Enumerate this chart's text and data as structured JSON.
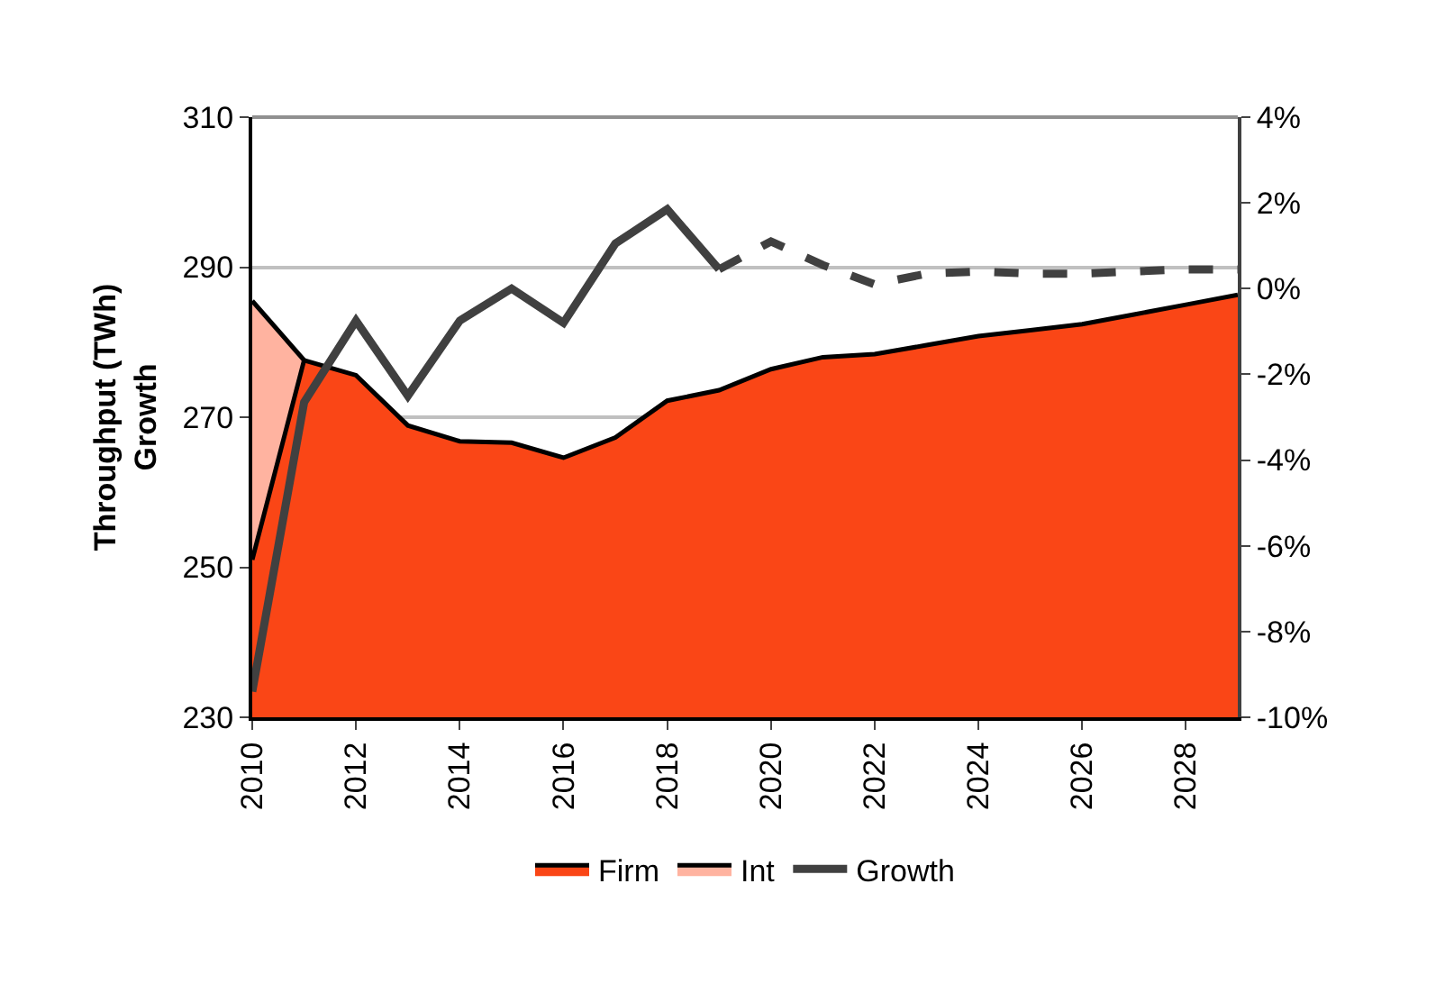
{
  "chart_data": {
    "type": "area",
    "ylabel": "Throughput (TWh)\nGrowth",
    "x": [
      2010,
      2011,
      2012,
      2013,
      2014,
      2015,
      2016,
      2017,
      2018,
      2019,
      2020,
      2021,
      2022,
      2023,
      2024,
      2025,
      2026,
      2027,
      2028,
      2029
    ],
    "series": [
      {
        "name": "Firm",
        "color": "#fa4616",
        "values": [
          251,
          277.6,
          275.6,
          268.9,
          266.8,
          266.6,
          264.6,
          267.3,
          272.2,
          273.6,
          276.4,
          278,
          278.4,
          279.6,
          280.8,
          281.6,
          282.4,
          283.7,
          285,
          286.3
        ]
      },
      {
        "name": "Int",
        "color": "#ffb3a0",
        "x": [
          2010,
          2011
        ],
        "values": [
          285.5,
          277.6
        ]
      },
      {
        "name": "Growth",
        "type": "line",
        "axis": "y2",
        "color": "#404040",
        "line_style": "solid",
        "x": [
          2010,
          2011,
          2012,
          2013,
          2014,
          2015,
          2016,
          2017,
          2018,
          2019
        ],
        "values": [
          -9.4,
          -2.65,
          -0.75,
          -2.5,
          -0.75,
          0,
          -0.8,
          1.05,
          1.85,
          0.45
        ]
      },
      {
        "type": "line",
        "axis": "y2",
        "color": "#404040",
        "line_style": "dashed",
        "x": [
          2019,
          2020,
          2021,
          2022,
          2023,
          2024,
          2025,
          2026,
          2027,
          2028,
          2029
        ],
        "values": [
          0.45,
          1.1,
          0.55,
          0.1,
          0.35,
          0.4,
          0.35,
          0.35,
          0.4,
          0.45,
          0.45
        ]
      }
    ],
    "xlim": [
      2010,
      2029
    ],
    "xticks": [
      2010,
      2012,
      2014,
      2016,
      2018,
      2020,
      2022,
      2024,
      2026,
      2028
    ],
    "ylim": [
      230,
      310
    ],
    "yticks": [
      230,
      250,
      270,
      290,
      310
    ],
    "y2lim": [
      -10,
      4
    ],
    "y2ticks": [
      {
        "value": -10,
        "label": "-10%"
      },
      {
        "value": -8,
        "label": "-8%"
      },
      {
        "value": -6,
        "label": "-6%"
      },
      {
        "value": -4,
        "label": "-4%"
      },
      {
        "value": -2,
        "label": "-2%"
      },
      {
        "value": 0,
        "label": "0%"
      },
      {
        "value": 2,
        "label": "2%"
      },
      {
        "value": 4,
        "label": "4%"
      }
    ],
    "grid": "y",
    "legend": "bottom"
  }
}
